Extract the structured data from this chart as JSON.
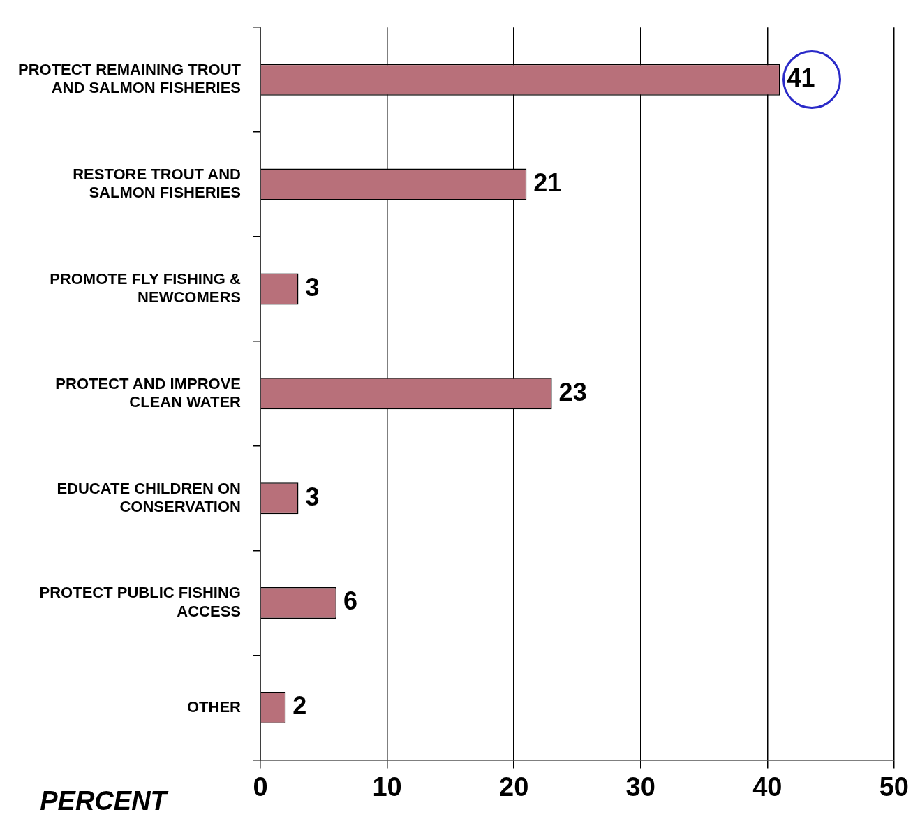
{
  "chart_data": {
    "type": "bar",
    "orientation": "horizontal",
    "xlabel": "PERCENT",
    "categories": [
      "PROTECT REMAINING TROUT AND SALMON FISHERIES",
      "RESTORE TROUT AND SALMON FISHERIES",
      "PROMOTE FLY FISHING & NEWCOMERS",
      "PROTECT AND IMPROVE CLEAN WATER",
      "EDUCATE CHILDREN ON CONSERVATION",
      "PROTECT PUBLIC FISHING ACCESS",
      "OTHER"
    ],
    "values": [
      41,
      21,
      3,
      23,
      3,
      6,
      2
    ],
    "color": "#b8707a",
    "xlim": [
      0,
      50
    ],
    "xticks": [
      0,
      10,
      20,
      30,
      40,
      50
    ],
    "grid": "x",
    "data_labels": true,
    "legend": false
  }
}
